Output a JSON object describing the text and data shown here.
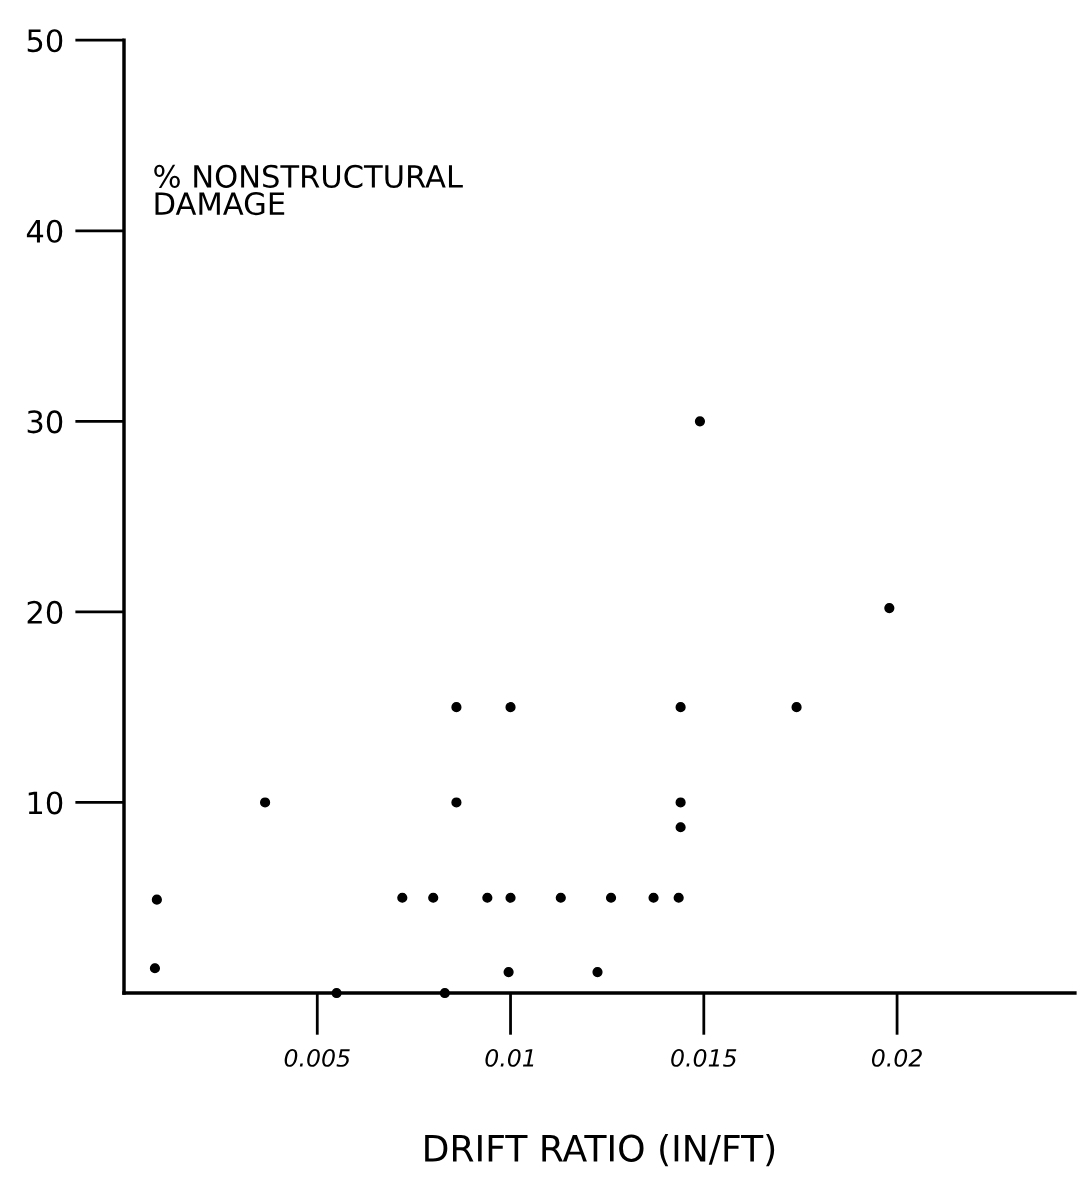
{
  "chart_data": {
    "type": "scatter",
    "xlabel": "DRIFT RATIO (IN/FT)",
    "ylabel": "% NONSTRUCTURAL\nDAMAGE",
    "x": [
      0.0008,
      0.00085,
      0.00365,
      0.0055,
      0.0083,
      0.0072,
      0.008,
      0.0086,
      0.0086,
      0.0094,
      0.01,
      0.01,
      0.00995,
      0.0113,
      0.01225,
      0.0126,
      0.0137,
      0.01435,
      0.0144,
      0.0144,
      0.0144,
      0.0149,
      0.0174,
      0.0198
    ],
    "values": [
      1.3,
      4.9,
      10,
      0,
      0,
      5,
      5,
      15,
      10,
      5,
      15,
      5,
      1.1,
      5,
      1.1,
      5,
      5,
      5,
      15,
      10,
      8.7,
      30,
      15,
      20.2
    ],
    "color": "#000000",
    "marker": "circle",
    "xlim": [
      0,
      0.0246
    ],
    "ylim": [
      0,
      50
    ],
    "xticks": [
      0.005,
      0.01,
      0.015,
      0.02
    ],
    "yticks": [
      10,
      20,
      30,
      40,
      50
    ],
    "grid": false,
    "legend": false
  }
}
